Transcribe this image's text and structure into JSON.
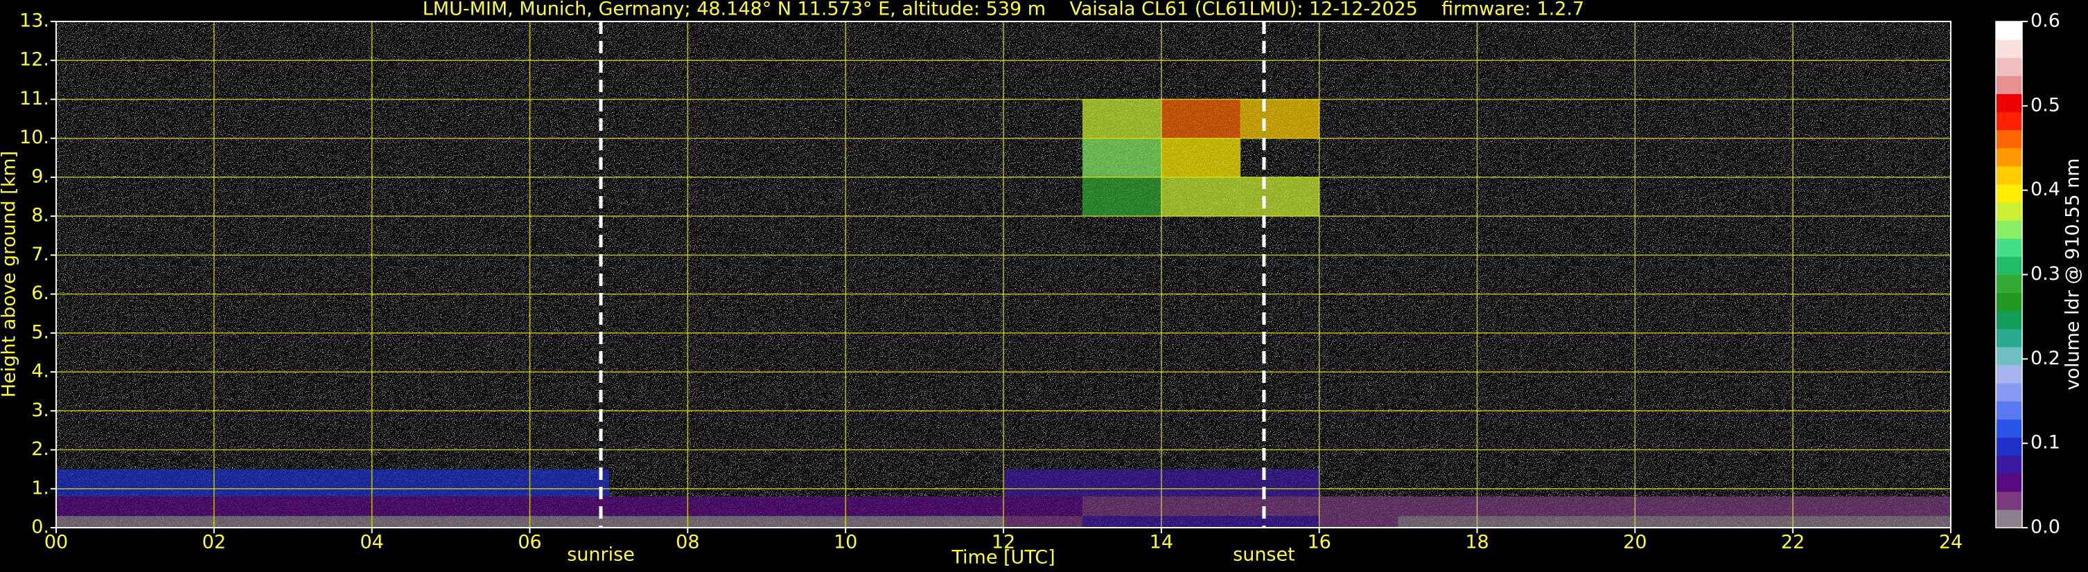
{
  "chart_data": {
    "type": "heatmap",
    "title": "LMU-MIM, Munich, Germany; 48.148° N 11.573° E, altitude: 539 m    Vaisala CL61 (CL61LMU): 12-12-2025    firmware: 1.2.7",
    "x_label": "Time [UTC]",
    "y_label": "Height above ground [km]",
    "colorbar_label": "volume ldr @ 910.55 nm",
    "xlim": [
      0,
      24
    ],
    "ylim": [
      0,
      13
    ],
    "xticks": [
      {
        "value": 0,
        "label": "00"
      },
      {
        "value": 2,
        "label": "02"
      },
      {
        "value": 4,
        "label": "04"
      },
      {
        "value": 6,
        "label": "06"
      },
      {
        "value": 8,
        "label": "08"
      },
      {
        "value": 10,
        "label": "10"
      },
      {
        "value": 12,
        "label": "12"
      },
      {
        "value": 14,
        "label": "14"
      },
      {
        "value": 16,
        "label": "16"
      },
      {
        "value": 18,
        "label": "18"
      },
      {
        "value": 20,
        "label": "20"
      },
      {
        "value": 22,
        "label": "22"
      },
      {
        "value": 24,
        "label": "24"
      }
    ],
    "yticks": [
      {
        "value": 0,
        "label": "0."
      },
      {
        "value": 1,
        "label": "1."
      },
      {
        "value": 2,
        "label": "2."
      },
      {
        "value": 3,
        "label": "3."
      },
      {
        "value": 4,
        "label": "4."
      },
      {
        "value": 5,
        "label": "5."
      },
      {
        "value": 6,
        "label": "6."
      },
      {
        "value": 7,
        "label": "7."
      },
      {
        "value": 8,
        "label": "8."
      },
      {
        "value": 9,
        "label": "9."
      },
      {
        "value": 10,
        "label": "10."
      },
      {
        "value": 11,
        "label": "11."
      },
      {
        "value": 12,
        "label": "12."
      },
      {
        "value": 13,
        "label": "13."
      }
    ],
    "clim": [
      0,
      0.6
    ],
    "cticks": [
      {
        "value": 0,
        "label": "0.0"
      },
      0.1,
      0.2,
      0.3,
      0.4,
      0.5,
      0.6
    ],
    "colormap": [
      "#8c7f8c",
      "#7a3a80",
      "#5a0a80",
      "#3a1aa0",
      "#2030c8",
      "#2a55e8",
      "#5a78f0",
      "#8899f0",
      "#a8b4f0",
      "#6fc0c0",
      "#2aa890",
      "#139c5a",
      "#229922",
      "#33aa33",
      "#22bb66",
      "#44dd88",
      "#88ee66",
      "#ccee33",
      "#ffee00",
      "#ffcc00",
      "#ff9900",
      "#ff6600",
      "#ff2200",
      "#ee0000",
      "#e89090",
      "#f0c0c0",
      "#f8e0e0",
      "#ffffff"
    ],
    "grid": true,
    "grid_color": "#e6e600",
    "x_edges": [
      0,
      1,
      2,
      3,
      4,
      5,
      6,
      7,
      8,
      9,
      10,
      11,
      12,
      13,
      14,
      15,
      16,
      17,
      18,
      19,
      20,
      21,
      22,
      23,
      24
    ],
    "y_edges": [
      0,
      0.3,
      0.8,
      1.5,
      8,
      9,
      10,
      11,
      13
    ],
    "z": [
      [
        0.02,
        0.02,
        0.02,
        0.02,
        0.02,
        0.02,
        0.02,
        0.02,
        0.02,
        0.02,
        0.02,
        0.02,
        0.04,
        0.08,
        0.08,
        0.08,
        0.03,
        0.02,
        0.02,
        0.02,
        0.02,
        0.02,
        0.02,
        0.02
      ],
      [
        0.06,
        0.06,
        0.06,
        0.06,
        0.06,
        0.06,
        0.06,
        0.05,
        0.05,
        0.05,
        0.05,
        0.05,
        0.05,
        0.04,
        0.04,
        0.04,
        0.03,
        0.03,
        0.03,
        0.03,
        0.03,
        0.03,
        0.03,
        0.03
      ],
      [
        0.1,
        0.1,
        0.1,
        0.1,
        0.1,
        0.1,
        0.1,
        null,
        null,
        null,
        null,
        null,
        0.08,
        0.08,
        0.08,
        0.08,
        null,
        null,
        null,
        null,
        null,
        null,
        null,
        null
      ],
      [
        null,
        null,
        null,
        null,
        null,
        null,
        null,
        null,
        null,
        null,
        null,
        null,
        null,
        null,
        null,
        null,
        null,
        null,
        null,
        null,
        null,
        null,
        null,
        null
      ],
      [
        null,
        null,
        null,
        null,
        null,
        null,
        null,
        null,
        null,
        null,
        null,
        null,
        null,
        0.28,
        0.38,
        0.38,
        null,
        null,
        null,
        null,
        null,
        null,
        null,
        null
      ],
      [
        null,
        null,
        null,
        null,
        null,
        null,
        null,
        null,
        null,
        null,
        null,
        null,
        null,
        0.35,
        0.4,
        null,
        null,
        null,
        null,
        null,
        null,
        null,
        null,
        null
      ],
      [
        null,
        null,
        null,
        null,
        null,
        null,
        null,
        null,
        null,
        null,
        null,
        null,
        null,
        0.38,
        0.45,
        0.42,
        null,
        null,
        null,
        null,
        null,
        null,
        null,
        null
      ],
      [
        null,
        null,
        null,
        null,
        null,
        null,
        null,
        null,
        null,
        null,
        null,
        null,
        null,
        null,
        null,
        null,
        null,
        null,
        null,
        null,
        null,
        null,
        null,
        null
      ]
    ],
    "annotations": [
      {
        "label": "sunrise",
        "x": 6.9
      },
      {
        "label": "sunset",
        "x": 15.3
      }
    ]
  }
}
